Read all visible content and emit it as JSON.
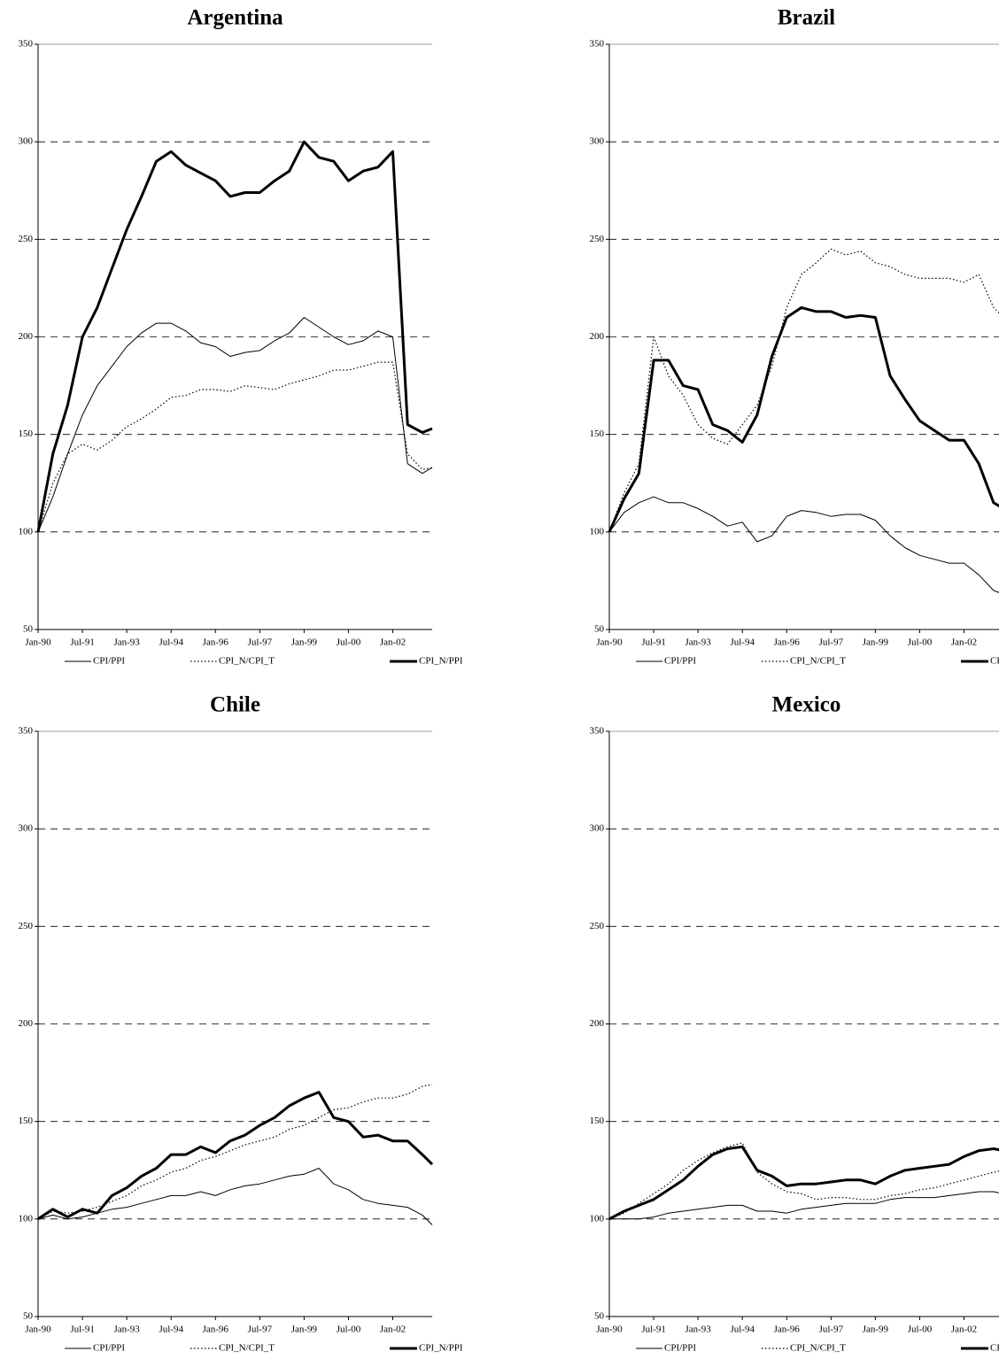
{
  "chart_data": [
    {
      "type": "line",
      "title": "Argentina",
      "x": [
        0,
        6,
        12,
        18,
        24,
        30,
        36,
        42,
        48,
        54,
        60,
        66,
        72,
        78,
        84,
        90,
        96,
        102,
        108,
        114,
        120,
        126,
        132,
        138,
        144,
        150,
        156,
        160
      ],
      "xlim": [
        0,
        160
      ],
      "xticks": [
        {
          "value": 0,
          "label": "Jan-90"
        },
        {
          "value": 18,
          "label": "Jul-91"
        },
        {
          "value": 36,
          "label": "Jan-93"
        },
        {
          "value": 54,
          "label": "Jul-94"
        },
        {
          "value": 72,
          "label": "Jan-96"
        },
        {
          "value": 90,
          "label": "Jul-97"
        },
        {
          "value": 108,
          "label": "Jan-99"
        },
        {
          "value": 126,
          "label": "Jul-00"
        },
        {
          "value": 144,
          "label": "Jan-02"
        }
      ],
      "ylim": [
        50,
        350
      ],
      "yticks": [
        50,
        100,
        150,
        200,
        250,
        300,
        350
      ],
      "grid": true,
      "series": [
        {
          "name": "CPI/PPI",
          "color": "#000000",
          "values": [
            100,
            118,
            140,
            160,
            175,
            185,
            195,
            202,
            207,
            207,
            203,
            197,
            195,
            190,
            192,
            193,
            198,
            202,
            210,
            205,
            200,
            196,
            198,
            203,
            200,
            135,
            130,
            133
          ]
        },
        {
          "name": "CPI_N/CPI_T",
          "color": "#000000",
          "values": [
            100,
            125,
            140,
            145,
            142,
            147,
            154,
            158,
            163,
            169,
            170,
            173,
            173,
            172,
            175,
            174,
            173,
            176,
            178,
            180,
            183,
            183,
            185,
            187,
            187,
            140,
            132,
            133
          ]
        },
        {
          "name": "CPI_N/PPI",
          "color": "#000000",
          "values": [
            100,
            140,
            165,
            200,
            215,
            235,
            255,
            272,
            290,
            295,
            288,
            284,
            280,
            272,
            274,
            274,
            280,
            285,
            300,
            292,
            290,
            280,
            285,
            287,
            295,
            155,
            151,
            153
          ]
        }
      ]
    },
    {
      "type": "line",
      "title": "Brazil",
      "x": [
        0,
        6,
        12,
        18,
        24,
        30,
        36,
        42,
        48,
        54,
        60,
        66,
        72,
        78,
        84,
        90,
        96,
        102,
        108,
        114,
        120,
        126,
        132,
        138,
        144,
        150,
        156,
        160
      ],
      "xlim": [
        0,
        160
      ],
      "xticks": [
        {
          "value": 0,
          "label": "Jan-90"
        },
        {
          "value": 18,
          "label": "Jul-91"
        },
        {
          "value": 36,
          "label": "Jan-93"
        },
        {
          "value": 54,
          "label": "Jul-94"
        },
        {
          "value": 72,
          "label": "Jan-96"
        },
        {
          "value": 90,
          "label": "Jul-97"
        },
        {
          "value": 108,
          "label": "Jan-99"
        },
        {
          "value": 126,
          "label": "Jul-00"
        },
        {
          "value": 144,
          "label": "Jan-02"
        }
      ],
      "ylim": [
        50,
        350
      ],
      "yticks": [
        50,
        100,
        150,
        200,
        250,
        300,
        350
      ],
      "grid": true,
      "series": [
        {
          "name": "CPI/PPI",
          "color": "#000000",
          "values": [
            100,
            110,
            115,
            118,
            115,
            115,
            112,
            108,
            103,
            105,
            95,
            98,
            108,
            111,
            110,
            108,
            109,
            109,
            106,
            98,
            92,
            88,
            86,
            84,
            84,
            78,
            70,
            68
          ]
        },
        {
          "name": "CPI_N/CPI_T",
          "color": "#000000",
          "values": [
            100,
            120,
            135,
            200,
            180,
            170,
            155,
            148,
            145,
            155,
            165,
            185,
            215,
            232,
            238,
            245,
            242,
            244,
            238,
            236,
            232,
            230,
            230,
            230,
            228,
            232,
            215,
            210
          ]
        },
        {
          "name": "CPI_N/PPI",
          "color": "#000000",
          "values": [
            100,
            117,
            130,
            188,
            188,
            175,
            173,
            155,
            152,
            146,
            160,
            190,
            210,
            215,
            213,
            213,
            210,
            211,
            210,
            180,
            168,
            157,
            152,
            147,
            147,
            135,
            115,
            112
          ]
        }
      ]
    },
    {
      "type": "line",
      "title": "Chile",
      "x": [
        0,
        6,
        12,
        18,
        24,
        30,
        36,
        42,
        48,
        54,
        60,
        66,
        72,
        78,
        84,
        90,
        96,
        102,
        108,
        114,
        120,
        126,
        132,
        138,
        144,
        150,
        156,
        160
      ],
      "xlim": [
        0,
        160
      ],
      "xticks": [
        {
          "value": 0,
          "label": "Jan-90"
        },
        {
          "value": 18,
          "label": "Jul-91"
        },
        {
          "value": 36,
          "label": "Jan-93"
        },
        {
          "value": 54,
          "label": "Jul-94"
        },
        {
          "value": 72,
          "label": "Jan-96"
        },
        {
          "value": 90,
          "label": "Jul-97"
        },
        {
          "value": 108,
          "label": "Jan-99"
        },
        {
          "value": 126,
          "label": "Jul-00"
        },
        {
          "value": 144,
          "label": "Jan-02"
        }
      ],
      "ylim": [
        50,
        350
      ],
      "yticks": [
        50,
        100,
        150,
        200,
        250,
        300,
        350
      ],
      "grid": true,
      "series": [
        {
          "name": "CPI/PPI",
          "color": "#000000",
          "values": [
            100,
            102,
            100,
            101,
            103,
            105,
            106,
            108,
            110,
            112,
            112,
            114,
            112,
            115,
            117,
            118,
            120,
            122,
            123,
            126,
            118,
            115,
            110,
            108,
            107,
            106,
            102,
            97
          ]
        },
        {
          "name": "CPI_N/CPI_T",
          "color": "#000000",
          "values": [
            100,
            104,
            103,
            104,
            106,
            109,
            112,
            117,
            120,
            124,
            126,
            130,
            132,
            135,
            138,
            140,
            142,
            146,
            148,
            152,
            156,
            157,
            160,
            162,
            162,
            164,
            168,
            169
          ]
        },
        {
          "name": "CPI_N/PPI",
          "color": "#000000",
          "values": [
            100,
            105,
            101,
            105,
            103,
            112,
            116,
            122,
            126,
            133,
            133,
            137,
            134,
            140,
            143,
            148,
            152,
            158,
            162,
            165,
            152,
            150,
            142,
            143,
            140,
            140,
            133,
            128
          ]
        }
      ]
    },
    {
      "type": "line",
      "title": "Mexico",
      "x": [
        0,
        6,
        12,
        18,
        24,
        30,
        36,
        42,
        48,
        54,
        60,
        66,
        72,
        78,
        84,
        90,
        96,
        102,
        108,
        114,
        120,
        126,
        132,
        138,
        144,
        150,
        156,
        160
      ],
      "xlim": [
        0,
        160
      ],
      "xticks": [
        {
          "value": 0,
          "label": "Jan-90"
        },
        {
          "value": 18,
          "label": "Jul-91"
        },
        {
          "value": 36,
          "label": "Jan-93"
        },
        {
          "value": 54,
          "label": "Jul-94"
        },
        {
          "value": 72,
          "label": "Jan-96"
        },
        {
          "value": 90,
          "label": "Jul-97"
        },
        {
          "value": 108,
          "label": "Jan-99"
        },
        {
          "value": 126,
          "label": "Jul-00"
        },
        {
          "value": 144,
          "label": "Jan-02"
        }
      ],
      "ylim": [
        50,
        350
      ],
      "yticks": [
        50,
        100,
        150,
        200,
        250,
        300,
        350
      ],
      "grid": true,
      "series": [
        {
          "name": "CPI/PPI",
          "color": "#000000",
          "values": [
            100,
            100,
            100,
            101,
            103,
            104,
            105,
            106,
            107,
            107,
            104,
            104,
            103,
            105,
            106,
            107,
            108,
            108,
            108,
            110,
            111,
            111,
            111,
            112,
            113,
            114,
            114,
            113
          ]
        },
        {
          "name": "CPI_N/CPI_T",
          "color": "#000000",
          "values": [
            100,
            103,
            108,
            113,
            118,
            125,
            130,
            134,
            137,
            139,
            124,
            118,
            114,
            113,
            110,
            111,
            111,
            110,
            110,
            112,
            113,
            115,
            116,
            118,
            120,
            122,
            124,
            125
          ]
        },
        {
          "name": "CPI_N/PPI",
          "color": "#000000",
          "values": [
            100,
            104,
            107,
            110,
            115,
            120,
            127,
            133,
            136,
            137,
            125,
            122,
            117,
            118,
            118,
            119,
            120,
            120,
            118,
            122,
            125,
            126,
            127,
            128,
            132,
            135,
            136,
            135
          ]
        }
      ]
    }
  ]
}
